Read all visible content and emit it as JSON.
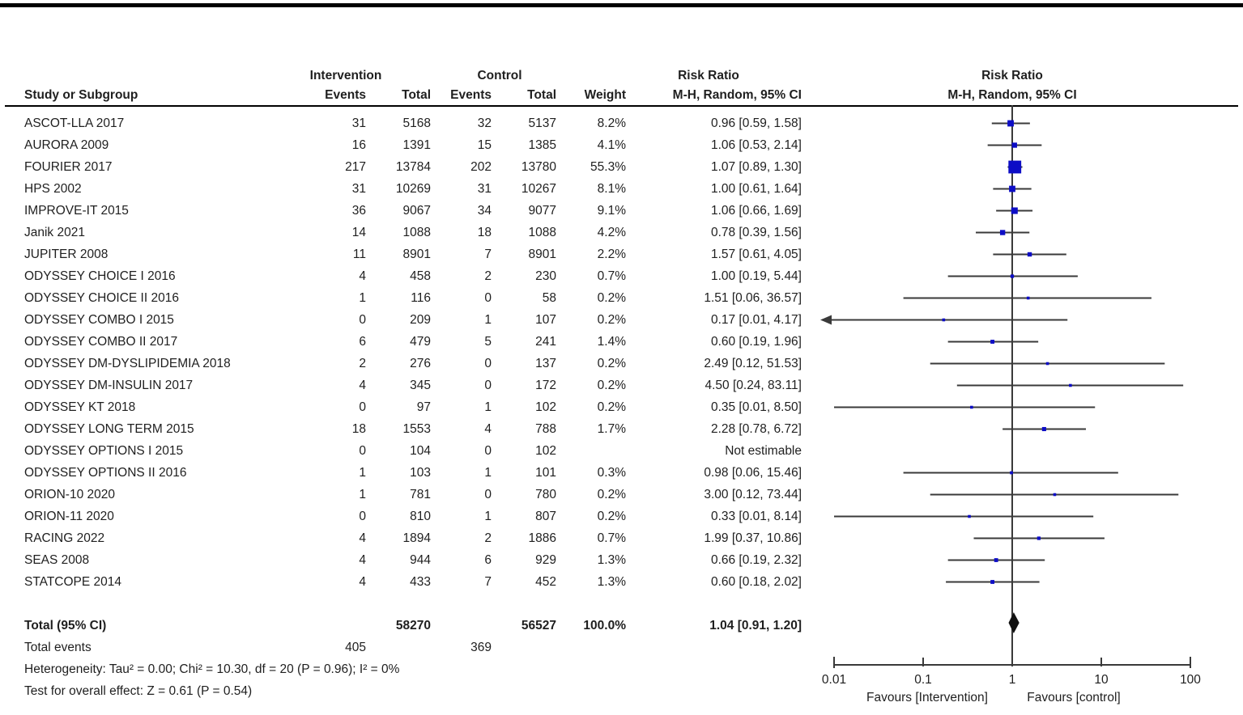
{
  "colors": {
    "marker": "#0D0DC6",
    "diamond": "#111111",
    "line": "#3a3a3a",
    "text": "#1f1f1f",
    "rule": "#000000"
  },
  "table": {
    "headers": {
      "group_intervention": "Intervention",
      "group_control": "Control",
      "study": "Study or Subgroup",
      "events": "Events",
      "total": "Total",
      "weight": "Weight",
      "risk_ratio": "Risk Ratio",
      "method": "M-H, Random, 95% CI"
    },
    "footer": {
      "heterogeneity": "Heterogeneity: Tau² = 0.00; Chi² = 10.30, df = 20 (P = 0.96); I² = 0%",
      "overall_effect": "Test for overall effect: Z = 0.61 (P = 0.54)"
    }
  },
  "chart_data": {
    "type": "forest",
    "effect_measure": "Risk Ratio, M-H, Random, 95% CI",
    "x_axis": {
      "scale": "log",
      "ticks": [
        0.01,
        0.1,
        1,
        10,
        100
      ],
      "tick_labels": [
        "0.01",
        "0.1",
        "1",
        "10",
        "100"
      ]
    },
    "favours_left": "Favours [Intervention]",
    "favours_right": "Favours [control]",
    "studies": [
      {
        "name": "ASCOT-LLA 2017",
        "int_events": 31,
        "int_total": 5168,
        "ctl_events": 32,
        "ctl_total": 5137,
        "weight_label": "8.2%",
        "rr_label": "0.96 [0.59, 1.58]",
        "rr": 0.96,
        "ci_low": 0.59,
        "ci_high": 1.58
      },
      {
        "name": "AURORA 2009",
        "int_events": 16,
        "int_total": 1391,
        "ctl_events": 15,
        "ctl_total": 1385,
        "weight_label": "4.1%",
        "rr_label": "1.06 [0.53, 2.14]",
        "rr": 1.06,
        "ci_low": 0.53,
        "ci_high": 2.14
      },
      {
        "name": "FOURIER 2017",
        "int_events": 217,
        "int_total": 13784,
        "ctl_events": 202,
        "ctl_total": 13780,
        "weight_label": "55.3%",
        "rr_label": "1.07 [0.89, 1.30]",
        "rr": 1.07,
        "ci_low": 0.89,
        "ci_high": 1.3
      },
      {
        "name": "HPS 2002",
        "int_events": 31,
        "int_total": 10269,
        "ctl_events": 31,
        "ctl_total": 10267,
        "weight_label": "8.1%",
        "rr_label": "1.00 [0.61, 1.64]",
        "rr": 1.0,
        "ci_low": 0.61,
        "ci_high": 1.64
      },
      {
        "name": "IMPROVE-IT 2015",
        "int_events": 36,
        "int_total": 9067,
        "ctl_events": 34,
        "ctl_total": 9077,
        "weight_label": "9.1%",
        "rr_label": "1.06 [0.66, 1.69]",
        "rr": 1.06,
        "ci_low": 0.66,
        "ci_high": 1.69
      },
      {
        "name": "Janik 2021",
        "int_events": 14,
        "int_total": 1088,
        "ctl_events": 18,
        "ctl_total": 1088,
        "weight_label": "4.2%",
        "rr_label": "0.78 [0.39, 1.56]",
        "rr": 0.78,
        "ci_low": 0.39,
        "ci_high": 1.56
      },
      {
        "name": "JUPITER 2008",
        "int_events": 11,
        "int_total": 8901,
        "ctl_events": 7,
        "ctl_total": 8901,
        "weight_label": "2.2%",
        "rr_label": "1.57 [0.61, 4.05]",
        "rr": 1.57,
        "ci_low": 0.61,
        "ci_high": 4.05
      },
      {
        "name": "ODYSSEY CHOICE I 2016",
        "int_events": 4,
        "int_total": 458,
        "ctl_events": 2,
        "ctl_total": 230,
        "weight_label": "0.7%",
        "rr_label": "1.00 [0.19, 5.44]",
        "rr": 1.0,
        "ci_low": 0.19,
        "ci_high": 5.44
      },
      {
        "name": "ODYSSEY CHOICE II 2016",
        "int_events": 1,
        "int_total": 116,
        "ctl_events": 0,
        "ctl_total": 58,
        "weight_label": "0.2%",
        "rr_label": "1.51 [0.06, 36.57]",
        "rr": 1.51,
        "ci_low": 0.06,
        "ci_high": 36.57
      },
      {
        "name": "ODYSSEY COMBO I 2015",
        "int_events": 0,
        "int_total": 209,
        "ctl_events": 1,
        "ctl_total": 107,
        "weight_label": "0.2%",
        "rr_label": "0.17 [0.01, 4.17]",
        "rr": 0.17,
        "ci_low": 0.01,
        "ci_high": 4.17,
        "arrow_low": true
      },
      {
        "name": "ODYSSEY COMBO II 2017",
        "int_events": 6,
        "int_total": 479,
        "ctl_events": 5,
        "ctl_total": 241,
        "weight_label": "1.4%",
        "rr_label": "0.60 [0.19, 1.96]",
        "rr": 0.6,
        "ci_low": 0.19,
        "ci_high": 1.96
      },
      {
        "name": "ODYSSEY DM-DYSLIPIDEMIA 2018",
        "int_events": 2,
        "int_total": 276,
        "ctl_events": 0,
        "ctl_total": 137,
        "weight_label": "0.2%",
        "rr_label": "2.49 [0.12, 51.53]",
        "rr": 2.49,
        "ci_low": 0.12,
        "ci_high": 51.53
      },
      {
        "name": "ODYSSEY DM-INSULIN 2017",
        "int_events": 4,
        "int_total": 345,
        "ctl_events": 0,
        "ctl_total": 172,
        "weight_label": "0.2%",
        "rr_label": "4.50 [0.24, 83.11]",
        "rr": 4.5,
        "ci_low": 0.24,
        "ci_high": 83.11
      },
      {
        "name": "ODYSSEY KT 2018",
        "int_events": 0,
        "int_total": 97,
        "ctl_events": 1,
        "ctl_total": 102,
        "weight_label": "0.2%",
        "rr_label": "0.35 [0.01, 8.50]",
        "rr": 0.35,
        "ci_low": 0.01,
        "ci_high": 8.5
      },
      {
        "name": "ODYSSEY LONG TERM 2015",
        "int_events": 18,
        "int_total": 1553,
        "ctl_events": 4,
        "ctl_total": 788,
        "weight_label": "1.7%",
        "rr_label": "2.28 [0.78, 6.72]",
        "rr": 2.28,
        "ci_low": 0.78,
        "ci_high": 6.72
      },
      {
        "name": "ODYSSEY OPTIONS I 2015",
        "int_events": 0,
        "int_total": 104,
        "ctl_events": 0,
        "ctl_total": 102,
        "weight_label": "",
        "rr_label": "Not estimable",
        "rr": null,
        "ci_low": null,
        "ci_high": null
      },
      {
        "name": "ODYSSEY OPTIONS II 2016",
        "int_events": 1,
        "int_total": 103,
        "ctl_events": 1,
        "ctl_total": 101,
        "weight_label": "0.3%",
        "rr_label": "0.98 [0.06, 15.46]",
        "rr": 0.98,
        "ci_low": 0.06,
        "ci_high": 15.46
      },
      {
        "name": "ORION-10 2020",
        "int_events": 1,
        "int_total": 781,
        "ctl_events": 0,
        "ctl_total": 780,
        "weight_label": "0.2%",
        "rr_label": "3.00 [0.12, 73.44]",
        "rr": 3.0,
        "ci_low": 0.12,
        "ci_high": 73.44
      },
      {
        "name": "ORION-11 2020",
        "int_events": 0,
        "int_total": 810,
        "ctl_events": 1,
        "ctl_total": 807,
        "weight_label": "0.2%",
        "rr_label": "0.33 [0.01, 8.14]",
        "rr": 0.33,
        "ci_low": 0.01,
        "ci_high": 8.14
      },
      {
        "name": "RACING 2022",
        "int_events": 4,
        "int_total": 1894,
        "ctl_events": 2,
        "ctl_total": 1886,
        "weight_label": "0.7%",
        "rr_label": "1.99 [0.37, 10.86]",
        "rr": 1.99,
        "ci_low": 0.37,
        "ci_high": 10.86
      },
      {
        "name": "SEAS 2008",
        "int_events": 4,
        "int_total": 944,
        "ctl_events": 6,
        "ctl_total": 929,
        "weight_label": "1.3%",
        "rr_label": "0.66 [0.19, 2.32]",
        "rr": 0.66,
        "ci_low": 0.19,
        "ci_high": 2.32
      },
      {
        "name": "STATCOPE 2014",
        "int_events": 4,
        "int_total": 433,
        "ctl_events": 7,
        "ctl_total": 452,
        "weight_label": "1.3%",
        "rr_label": "0.60 [0.18, 2.02]",
        "rr": 0.6,
        "ci_low": 0.18,
        "ci_high": 2.02
      }
    ],
    "total": {
      "label": "Total (95% CI)",
      "int_total": 58270,
      "ctl_total": 56527,
      "weight_label": "100.0%",
      "rr_label": "1.04 [0.91, 1.20]",
      "rr": 1.04,
      "ci_low": 0.91,
      "ci_high": 1.2
    },
    "total_events": {
      "label": "Total events",
      "intervention": 405,
      "control": 369
    }
  }
}
